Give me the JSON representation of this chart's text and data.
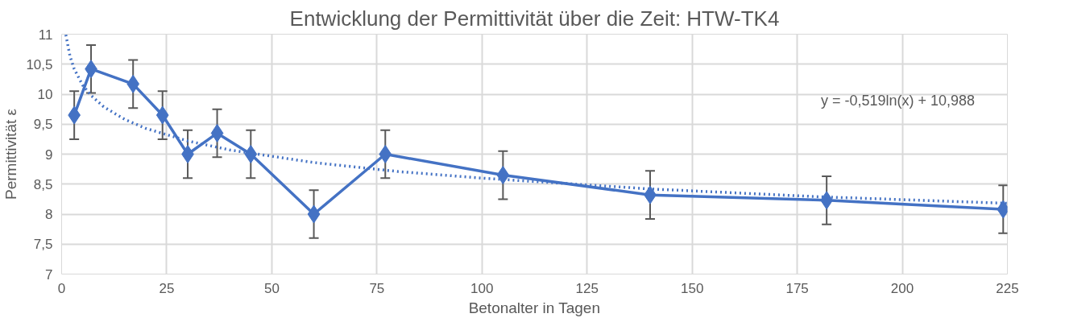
{
  "chart_data": {
    "type": "line",
    "title": "Entwicklung der Permittivität über die Zeit: HTW-TK4",
    "xlabel": "Betonalter in Tagen",
    "ylabel": "Permittivität ε",
    "xlim": [
      0,
      225
    ],
    "xticks": [
      0,
      25,
      50,
      75,
      100,
      125,
      150,
      175,
      200,
      225
    ],
    "ylim": [
      7,
      11
    ],
    "yticks": [
      7,
      {
        "value": 7.5,
        "label": "7,5"
      },
      8,
      {
        "value": 8.5,
        "label": "8,5"
      },
      9,
      {
        "value": 9.5,
        "label": "9,5"
      },
      10,
      {
        "value": 10.5,
        "label": "10,5"
      },
      11
    ],
    "grid": true,
    "annotations": [
      "y = -0,519ln(x) + 10,988"
    ],
    "series": [
      {
        "color": "#4472c4",
        "marker": "diamond",
        "line_style": "solid",
        "x": [
          3,
          7,
          17,
          24,
          30,
          37,
          45,
          60,
          77,
          105,
          140,
          182,
          224
        ],
        "values": [
          9.65,
          10.42,
          10.17,
          9.65,
          9.0,
          9.35,
          9.0,
          8.0,
          9.0,
          8.65,
          8.32,
          8.23,
          8.08
        ],
        "errors": [
          0.4,
          0.4,
          0.4,
          0.4,
          0.4,
          0.4,
          0.4,
          0.4,
          0.4,
          0.4,
          0.4,
          0.4,
          0.4
        ]
      },
      {
        "type": "line",
        "color": "#4472c4",
        "marker": "none",
        "line_style": "dotted",
        "x": [
          1,
          2,
          3,
          5,
          7,
          10,
          15,
          20,
          30,
          40,
          60,
          80,
          100,
          140,
          180,
          225
        ],
        "values": [
          10.99,
          10.63,
          10.42,
          10.15,
          9.98,
          9.79,
          9.58,
          9.43,
          9.22,
          9.07,
          8.86,
          8.71,
          8.6,
          8.42,
          8.29,
          8.18
        ]
      }
    ]
  }
}
